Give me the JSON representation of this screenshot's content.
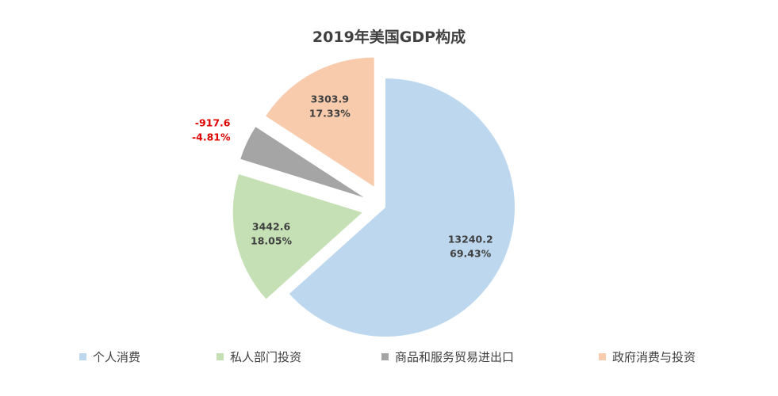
{
  "chart_data": {
    "type": "pie",
    "title": "2019年美国GDP构成",
    "legend_position": "bottom",
    "exploded": true,
    "slices": [
      {
        "label": "个人消费",
        "value": 13240.2,
        "value_label": "13240.2",
        "percent_label": "69.43%",
        "color": "#bdd7ee",
        "label_color": "#404040"
      },
      {
        "label": "私人部门投资",
        "value": 3442.6,
        "value_label": "3442.6",
        "percent_label": "18.05%",
        "color": "#c5e0b4",
        "label_color": "#404040"
      },
      {
        "label": "商品和服务贸易进出口",
        "value": -917.6,
        "value_label": "-917.6",
        "percent_label": "-4.81%",
        "color": "#a5a5a5",
        "label_color": "#e00000"
      },
      {
        "label": "政府消费与投资",
        "value": 3303.9,
        "value_label": "3303.9",
        "percent_label": "17.33%",
        "color": "#f8cbad",
        "label_color": "#404040"
      }
    ]
  }
}
